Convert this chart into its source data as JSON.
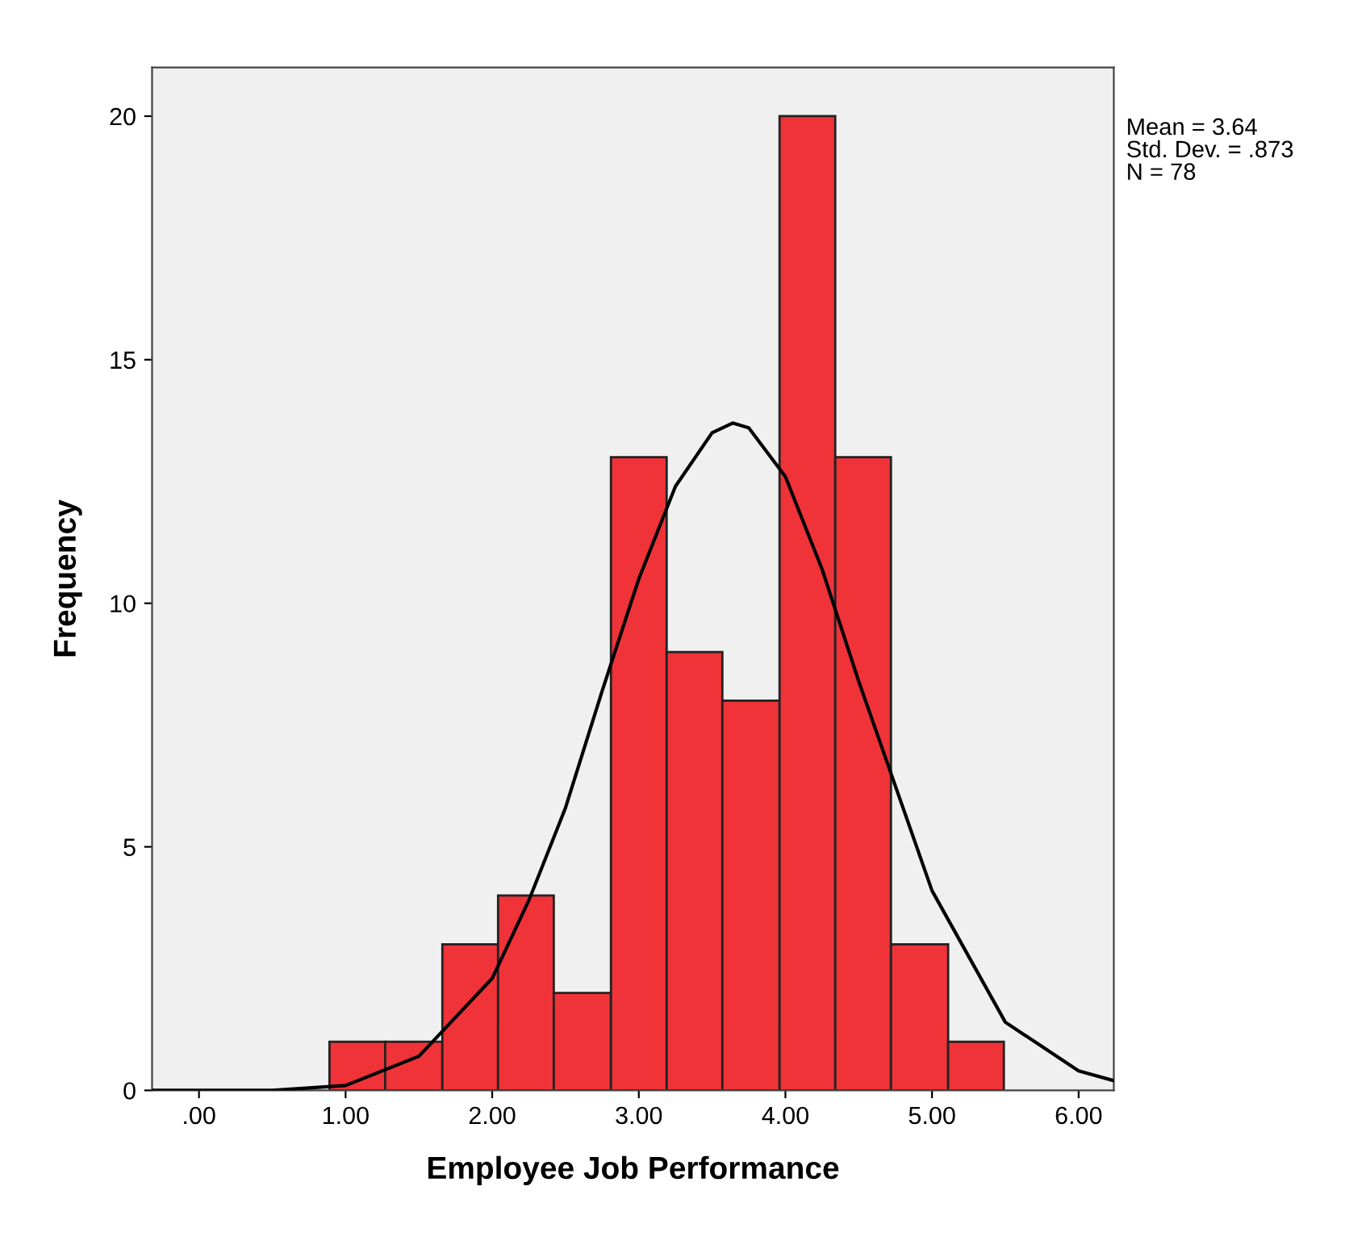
{
  "chart_data": {
    "type": "histogram",
    "xlabel": "Employee Job Performance",
    "ylabel": "Frequency",
    "annotations": [
      "Mean = 3.64",
      "Std. Dev. = .873",
      "N = 78"
    ],
    "series": [
      {
        "color": "#ef3339",
        "bins": [
          0.89,
          1.27,
          1.66,
          2.04,
          2.42,
          2.81,
          3.19,
          3.57,
          3.96,
          4.34,
          4.72,
          5.11,
          5.49
        ],
        "values": [
          1,
          1,
          3,
          4,
          2,
          13,
          9,
          8,
          20,
          13,
          3,
          1
        ]
      },
      {
        "type": "line",
        "color": "#000000",
        "x": [
          -0.32,
          0.5,
          1.0,
          1.5,
          2.0,
          2.25,
          2.5,
          2.75,
          3.0,
          3.25,
          3.5,
          3.64,
          3.75,
          4.0,
          4.25,
          4.5,
          5.0,
          5.5,
          6.0,
          6.24
        ],
        "values": [
          0.0,
          0.0,
          0.1,
          0.7,
          2.3,
          3.9,
          5.8,
          8.2,
          10.5,
          12.4,
          13.5,
          13.7,
          13.6,
          12.6,
          10.7,
          8.4,
          4.1,
          1.4,
          0.4,
          0.2
        ]
      }
    ],
    "xlim": [
      -0.32,
      6.24
    ],
    "ylim": [
      0,
      21
    ],
    "xticks": [
      {
        "value": 0,
        "label": ".00"
      },
      {
        "value": 1,
        "label": "1.00"
      },
      {
        "value": 2,
        "label": "2.00"
      },
      {
        "value": 3,
        "label": "3.00"
      },
      {
        "value": 4,
        "label": "4.00"
      },
      {
        "value": 5,
        "label": "5.00"
      },
      {
        "value": 6,
        "label": "6.00"
      }
    ],
    "yticks": [
      0,
      5,
      10,
      15,
      20
    ],
    "grid": false,
    "legend": false
  }
}
